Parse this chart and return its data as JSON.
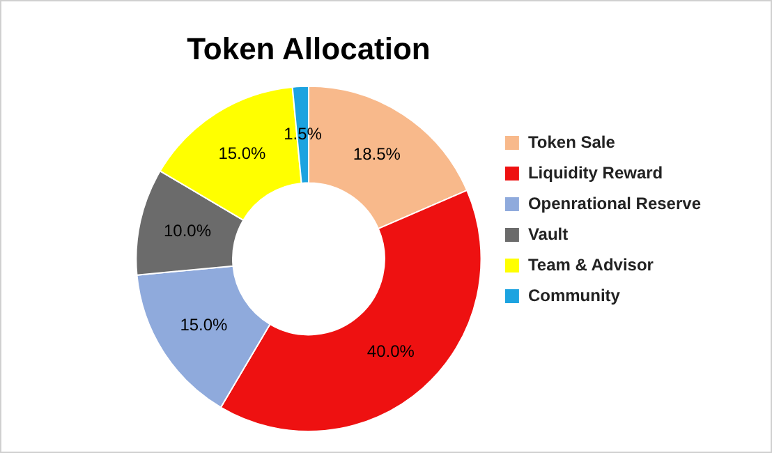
{
  "chart_data": {
    "type": "donut",
    "title": "Token Allocation",
    "categories": [
      "Token Sale",
      "Liquidity Reward",
      "Openrational Reserve",
      "Vault",
      "Team & Advisor",
      "Community"
    ],
    "values": [
      18.5,
      40,
      15,
      10,
      15,
      1.5
    ],
    "value_labels": [
      "18.5%",
      "40.0%",
      "15.0%",
      "10.0%",
      "15.0%",
      "1.5%"
    ],
    "colors": [
      "#f8b98b",
      "#ee1111",
      "#8faadc",
      "#6b6b6b",
      "#ffff00",
      "#1ca3e0"
    ],
    "legend": "right"
  }
}
